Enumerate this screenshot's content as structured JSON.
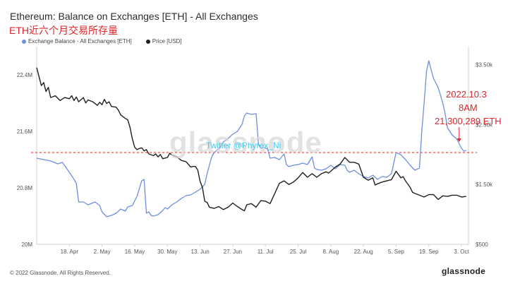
{
  "title": "Ethereum: Balance on Exchanges [ETH] - All Exchanges",
  "subtitle": "ETH近六个月交易所存量",
  "footer": "© 2022 Glassnode. All Rights Reserved.",
  "brand": "glassnode",
  "watermark": "glassnode",
  "twitter_tag": "Twitter @Phyrex_Ni",
  "annotation": {
    "line1": "2022.10.3",
    "line2": "8AM",
    "line3": "21,300,289 ETH"
  },
  "colors": {
    "balance": "#6d8fdc",
    "price": "#1f1f1f",
    "annotation": "#e0242a"
  },
  "chart_data": {
    "type": "line",
    "x_tick_labels": [
      "18. Apr",
      "2. May",
      "16. May",
      "30. May",
      "13. Jun",
      "27. Jun",
      "11. Jul",
      "25. Jul",
      "8. Aug",
      "22. Aug",
      "5. Sep",
      "19. Sep",
      "3. Oct"
    ],
    "x_ticks": [
      14,
      28,
      42,
      56,
      70,
      84,
      98,
      112,
      126,
      140,
      154,
      168,
      182
    ],
    "xlim": [
      0,
      185
    ],
    "y_left_ticks": [
      20000000,
      20800000,
      21600000,
      22400000
    ],
    "y_left_tick_labels": [
      "20M",
      "20.8M",
      "21.6M",
      "22.4M"
    ],
    "y_left_lim": [
      20000000,
      22800000
    ],
    "y_right_ticks": [
      500,
      1500,
      2500,
      3500
    ],
    "y_right_tick_labels": [
      "$500",
      "$1.50k",
      "$2.50k",
      "$3.50k"
    ],
    "y_right_lim": [
      500,
      3800
    ],
    "series": [
      {
        "name": "Exchange Balance - All Exchanges [ETH]",
        "axis": "left",
        "points": [
          [
            0,
            21.22
          ],
          [
            3,
            21.2
          ],
          [
            6,
            21.18
          ],
          [
            9,
            21.14
          ],
          [
            11,
            21.16
          ],
          [
            14,
            21.02
          ],
          [
            16,
            20.92
          ],
          [
            17,
            20.86
          ],
          [
            18,
            20.6
          ],
          [
            20,
            20.6
          ],
          [
            22,
            20.56
          ],
          [
            25,
            20.6
          ],
          [
            27,
            20.55
          ],
          [
            28,
            20.46
          ],
          [
            30,
            20.39
          ],
          [
            32,
            20.41
          ],
          [
            34,
            20.44
          ],
          [
            36,
            20.5
          ],
          [
            38,
            20.47
          ],
          [
            39,
            20.53
          ],
          [
            41,
            20.55
          ],
          [
            43,
            20.68
          ],
          [
            45,
            20.9
          ],
          [
            46,
            20.92
          ],
          [
            47,
            20.44
          ],
          [
            48,
            20.46
          ],
          [
            49,
            20.41
          ],
          [
            50,
            20.4
          ],
          [
            52,
            20.42
          ],
          [
            54,
            20.48
          ],
          [
            55,
            20.52
          ],
          [
            56,
            20.5
          ],
          [
            58,
            20.56
          ],
          [
            60,
            20.6
          ],
          [
            62,
            20.65
          ],
          [
            64,
            20.69
          ],
          [
            66,
            20.7
          ],
          [
            68,
            20.74
          ],
          [
            70,
            20.78
          ],
          [
            72,
            20.85
          ],
          [
            73,
            21.0
          ],
          [
            74,
            21.12
          ],
          [
            75,
            21.24
          ],
          [
            76,
            21.3
          ],
          [
            78,
            21.35
          ],
          [
            80,
            21.45
          ],
          [
            82,
            21.5
          ],
          [
            84,
            21.56
          ],
          [
            86,
            21.6
          ],
          [
            88,
            21.7
          ],
          [
            89,
            21.82
          ],
          [
            90,
            21.86
          ],
          [
            92,
            21.84
          ],
          [
            94,
            21.85
          ],
          [
            95,
            21.42
          ],
          [
            96,
            21.36
          ],
          [
            97,
            21.38
          ],
          [
            98,
            21.36
          ],
          [
            99,
            21.35
          ],
          [
            100,
            21.22
          ],
          [
            102,
            21.23
          ],
          [
            104,
            21.2
          ],
          [
            106,
            21.28
          ],
          [
            107,
            21.13
          ],
          [
            108,
            21.1
          ],
          [
            110,
            21.12
          ],
          [
            112,
            21.13
          ],
          [
            114,
            21.15
          ],
          [
            116,
            21.13
          ],
          [
            118,
            21.24
          ],
          [
            119,
            21.08
          ],
          [
            120,
            21.06
          ],
          [
            122,
            21.05
          ],
          [
            124,
            21.07
          ],
          [
            126,
            21.12
          ],
          [
            128,
            21.07
          ],
          [
            130,
            21.13
          ],
          [
            132,
            21.12
          ],
          [
            133,
            21.05
          ],
          [
            134,
            21.02
          ],
          [
            136,
            21.05
          ],
          [
            138,
            21.0
          ],
          [
            140,
            20.96
          ],
          [
            142,
            20.94
          ],
          [
            144,
            20.98
          ],
          [
            146,
            20.92
          ],
          [
            148,
            20.96
          ],
          [
            150,
            20.95
          ],
          [
            152,
            21.0
          ],
          [
            154,
            21.3
          ],
          [
            156,
            21.27
          ],
          [
            158,
            21.2
          ],
          [
            160,
            21.12
          ],
          [
            162,
            21.05
          ],
          [
            164,
            21.08
          ],
          [
            165,
            21.6
          ],
          [
            166,
            22.0
          ],
          [
            167,
            22.45
          ],
          [
            168,
            22.6
          ],
          [
            169,
            22.47
          ],
          [
            170,
            22.35
          ],
          [
            172,
            22.22
          ],
          [
            174,
            22.0
          ],
          [
            175,
            21.85
          ],
          [
            176,
            21.65
          ],
          [
            178,
            21.55
          ],
          [
            180,
            21.49
          ],
          [
            182,
            21.36
          ],
          [
            183,
            21.32
          ],
          [
            184,
            21.33
          ]
        ]
      },
      {
        "name": "Price [USD]",
        "axis": "right",
        "points": [
          [
            0,
            3450
          ],
          [
            1,
            3300
          ],
          [
            2,
            3150
          ],
          [
            3,
            3200
          ],
          [
            4,
            3050
          ],
          [
            5,
            3120
          ],
          [
            6,
            2950
          ],
          [
            8,
            2980
          ],
          [
            10,
            2900
          ],
          [
            12,
            2950
          ],
          [
            14,
            2930
          ],
          [
            15,
            2980
          ],
          [
            16,
            2900
          ],
          [
            17,
            2960
          ],
          [
            18,
            2880
          ],
          [
            20,
            2950
          ],
          [
            21,
            2860
          ],
          [
            22,
            2910
          ],
          [
            24,
            2880
          ],
          [
            26,
            2820
          ],
          [
            27,
            2870
          ],
          [
            28,
            2830
          ],
          [
            29,
            2920
          ],
          [
            30,
            2850
          ],
          [
            31,
            2880
          ],
          [
            32,
            2800
          ],
          [
            34,
            2790
          ],
          [
            35,
            2740
          ],
          [
            36,
            2660
          ],
          [
            38,
            2600
          ],
          [
            39,
            2580
          ],
          [
            40,
            2450
          ],
          [
            41,
            2260
          ],
          [
            42,
            2120
          ],
          [
            43,
            2080
          ],
          [
            44,
            2100
          ],
          [
            45,
            2110
          ],
          [
            46,
            2060
          ],
          [
            47,
            2080
          ],
          [
            48,
            2010
          ],
          [
            50,
            1980
          ],
          [
            51,
            2010
          ],
          [
            52,
            1960
          ],
          [
            53,
            2000
          ],
          [
            54,
            1930
          ],
          [
            56,
            1950
          ],
          [
            57,
            2020
          ],
          [
            58,
            1990
          ],
          [
            60,
            1960
          ],
          [
            62,
            1900
          ],
          [
            64,
            1880
          ],
          [
            66,
            1790
          ],
          [
            67,
            1800
          ],
          [
            68,
            1800
          ],
          [
            69,
            1740
          ],
          [
            70,
            1550
          ],
          [
            71,
            1450
          ],
          [
            72,
            1220
          ],
          [
            73,
            1200
          ],
          [
            74,
            1120
          ],
          [
            76,
            1100
          ],
          [
            78,
            1130
          ],
          [
            80,
            1080
          ],
          [
            82,
            1120
          ],
          [
            84,
            1190
          ],
          [
            86,
            1130
          ],
          [
            88,
            1080
          ],
          [
            89,
            1060
          ],
          [
            90,
            1160
          ],
          [
            92,
            1180
          ],
          [
            94,
            1120
          ],
          [
            96,
            1230
          ],
          [
            98,
            1220
          ],
          [
            100,
            1180
          ],
          [
            102,
            1350
          ],
          [
            104,
            1520
          ],
          [
            106,
            1560
          ],
          [
            108,
            1500
          ],
          [
            110,
            1540
          ],
          [
            112,
            1610
          ],
          [
            114,
            1700
          ],
          [
            116,
            1620
          ],
          [
            118,
            1680
          ],
          [
            120,
            1620
          ],
          [
            122,
            1680
          ],
          [
            124,
            1710
          ],
          [
            125,
            1690
          ],
          [
            126,
            1720
          ],
          [
            128,
            1790
          ],
          [
            130,
            1840
          ],
          [
            132,
            1950
          ],
          [
            134,
            1870
          ],
          [
            136,
            1870
          ],
          [
            138,
            1840
          ],
          [
            140,
            1620
          ],
          [
            142,
            1570
          ],
          [
            144,
            1610
          ],
          [
            145,
            1490
          ],
          [
            146,
            1510
          ],
          [
            148,
            1540
          ],
          [
            150,
            1560
          ],
          [
            152,
            1580
          ],
          [
            154,
            1720
          ],
          [
            156,
            1610
          ],
          [
            157,
            1630
          ],
          [
            158,
            1560
          ],
          [
            160,
            1450
          ],
          [
            161,
            1370
          ],
          [
            162,
            1350
          ],
          [
            164,
            1320
          ],
          [
            166,
            1290
          ],
          [
            168,
            1330
          ],
          [
            170,
            1330
          ],
          [
            172,
            1250
          ],
          [
            174,
            1310
          ],
          [
            176,
            1300
          ],
          [
            178,
            1320
          ],
          [
            180,
            1320
          ],
          [
            182,
            1290
          ],
          [
            184,
            1300
          ]
        ]
      }
    ],
    "reference_line": {
      "value": 21300289,
      "axis": "left",
      "style": "dashed",
      "color": "#e0242a"
    },
    "legend_position": "top-left",
    "grid": false
  }
}
